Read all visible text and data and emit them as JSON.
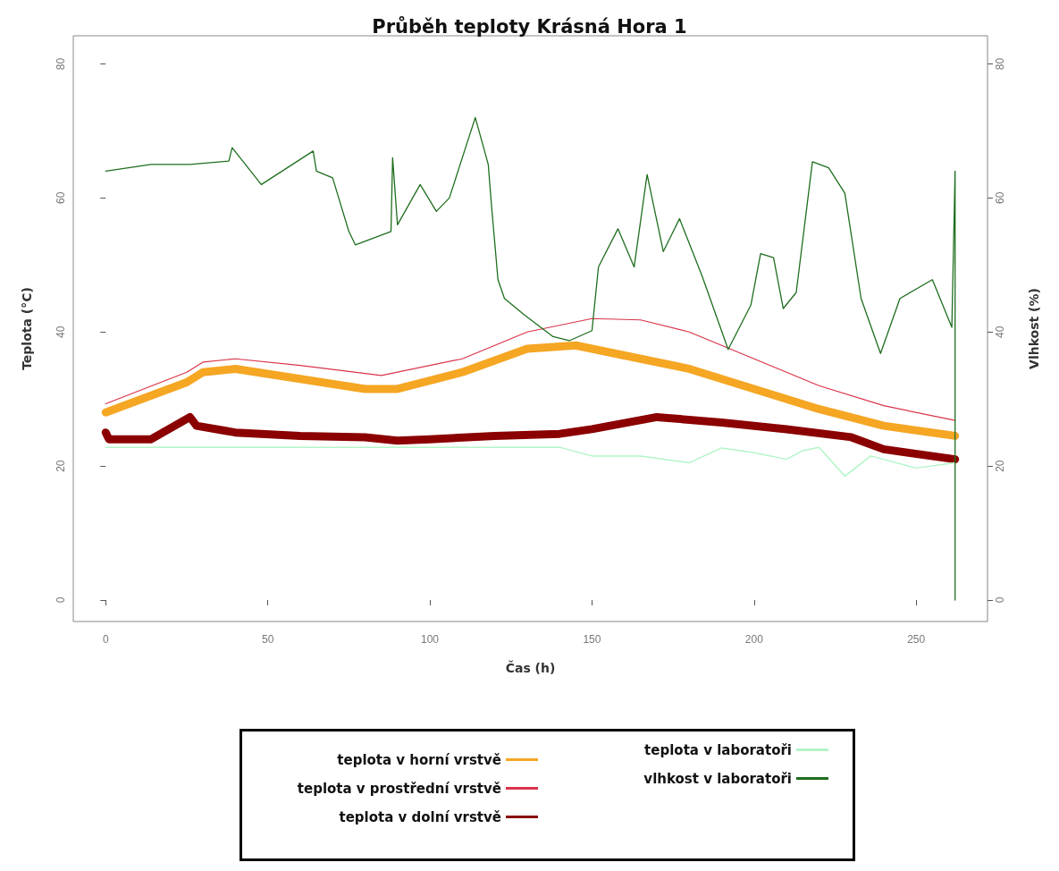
{
  "chart_data": {
    "type": "line",
    "title": "Průběh teploty Krásná Hora 1",
    "xlabel": "Čas (h)",
    "ylabel": "Teplota (°C)",
    "y2label": "Vlhkost (%)",
    "xlim": [
      -10,
      272
    ],
    "xticks": [
      0,
      50,
      100,
      150,
      200,
      250
    ],
    "ylim": [
      -3.2,
      84.2
    ],
    "yticks": [
      0,
      20,
      40,
      60,
      80
    ],
    "y2lim": [
      -3.2,
      84.2
    ],
    "y2ticks": [
      0,
      20,
      40,
      60,
      80
    ],
    "grid": false,
    "legend": "bottom",
    "marker": "none",
    "line_style": "solid",
    "series": [
      {
        "name": "teplota v horní vrstvě",
        "color": "#f5a623",
        "x": [
          0,
          25,
          30,
          40,
          60,
          80,
          90,
          110,
          130,
          145,
          160,
          180,
          200,
          220,
          240,
          262
        ],
        "values": [
          28,
          32.5,
          34,
          34.5,
          33,
          31.5,
          31.5,
          34,
          37.5,
          38,
          36.5,
          34.5,
          31.5,
          28.5,
          26,
          24.5
        ]
      },
      {
        "name": "teplota v prostřední vrstvě",
        "color": "#d9334a",
        "x": [
          0,
          25,
          30,
          40,
          60,
          85,
          110,
          130,
          150,
          165,
          180,
          200,
          220,
          240,
          262
        ],
        "values": [
          29.3,
          34,
          35.5,
          36,
          35,
          33.5,
          36,
          40,
          42,
          41.8,
          40,
          36,
          32,
          29,
          26.8
        ]
      },
      {
        "name": "teplota v dolní vrstvě",
        "color": "#8b0000",
        "x": [
          0,
          1,
          14,
          26,
          28,
          40,
          60,
          80,
          90,
          100,
          120,
          140,
          150,
          170,
          190,
          210,
          230,
          240,
          262
        ],
        "values": [
          25,
          24,
          24,
          27.3,
          26,
          25,
          24.5,
          24.3,
          23.8,
          24,
          24.5,
          24.8,
          25.5,
          27.3,
          26.5,
          25.5,
          24.3,
          22.5,
          21
        ]
      },
      {
        "name": "teplota v laboratoři",
        "color": "#b3f5c8",
        "x": [
          0,
          140,
          150,
          165,
          180,
          190,
          200,
          210,
          215,
          220,
          228,
          236,
          250,
          262
        ],
        "values": [
          22.8,
          22.8,
          21.5,
          21.5,
          20.5,
          22.7,
          22,
          21,
          22.3,
          22.8,
          18.5,
          21.5,
          19.7,
          20.5
        ]
      },
      {
        "name": "vlhkost v laboratoři",
        "color": "#1e6e1e",
        "axis": "y2",
        "x": [
          0,
          14,
          26,
          38,
          39,
          48,
          64,
          65,
          70,
          75,
          77,
          88,
          88.5,
          90,
          97,
          102,
          106,
          112,
          114,
          118,
          119,
          121,
          123,
          129,
          138,
          143,
          150,
          152,
          158,
          163,
          167,
          172,
          177,
          184,
          192,
          199,
          202,
          206,
          209,
          213,
          218,
          223,
          228,
          233,
          239,
          245,
          255,
          261,
          262,
          262
        ],
        "values": [
          64,
          65,
          65,
          65.5,
          67.5,
          62,
          67,
          64,
          63,
          55,
          53,
          55,
          66,
          56,
          62,
          58,
          60,
          69,
          72,
          65,
          58.9,
          47.8,
          45,
          42.6,
          39.3,
          38.7,
          40.2,
          49.7,
          55.4,
          49.7,
          63.5,
          52,
          56.9,
          48.3,
          37.4,
          44,
          51.7,
          51.1,
          43.5,
          45.9,
          65.4,
          64.5,
          60.7,
          45,
          36.8,
          45,
          47.8,
          40.7,
          64,
          0
        ]
      }
    ]
  }
}
